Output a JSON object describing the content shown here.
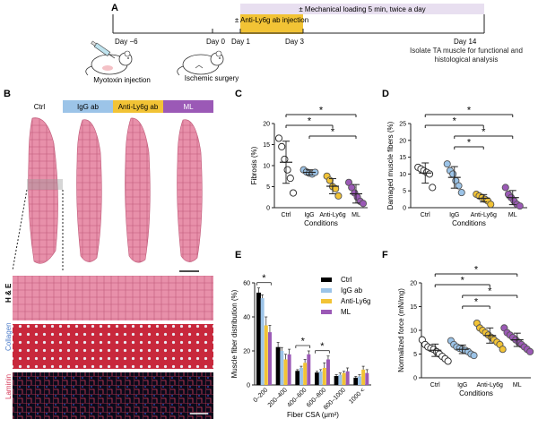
{
  "colors": {
    "ctrl": "#ffffff",
    "igg": "#9cc4e8",
    "antily6g": "#f2c335",
    "ml": "#9b59b6",
    "ctrl_bar": "#000000",
    "timeline_band": "#e8dff0",
    "injection_band": "#f2c335",
    "he_stain": "#d9708f",
    "collagen_stain": "#c8283c",
    "laminin_bg": "#0a0a1a",
    "laminin_line": "#d63a5a"
  },
  "panelA": {
    "letter": "A",
    "mech_loading": "± Mechanical loading 5 min, twice a day",
    "injection": "± Anti-Ly6g ab injection",
    "days": [
      "Day −6",
      "Day 0",
      "Day 1",
      "Day 3",
      "Day 14"
    ],
    "myotoxin": "Myotoxin injection",
    "ischemic": "Ischemic surgery",
    "isolate": "Isolate TA muscle for functional and histological analysis"
  },
  "panelB": {
    "letter": "B",
    "groups": [
      "Ctrl",
      "IgG ab",
      "Anti-Ly6g ab",
      "ML"
    ],
    "stains": [
      "H & E",
      "Collagen",
      "Laminin"
    ]
  },
  "chart_data": [
    {
      "panel": "C",
      "type": "scatter",
      "ylabel": "Fibrosis (%)",
      "xlabel": "Conditions",
      "categories": [
        "Ctrl",
        "IgG",
        "Anti-Ly6g",
        "ML"
      ],
      "ylim": [
        0,
        20
      ],
      "yticks": [
        0,
        5,
        10,
        15,
        20
      ],
      "points": [
        [
          16.5,
          14.5,
          11.5,
          9.0,
          7.0,
          3.5
        ],
        [
          9.0,
          8.5,
          8.2,
          8.0,
          8.4
        ],
        [
          7.5,
          6.5,
          5.0,
          4.5,
          2.8
        ],
        [
          6.0,
          4.8,
          3.5,
          2.5,
          1.5,
          1.0
        ]
      ],
      "mean": [
        10.8,
        8.4,
        5.1,
        3.3
      ],
      "err": [
        5.0,
        0.6,
        1.8,
        2.2
      ],
      "significance": [
        [
          "Ctrl",
          "ML"
        ],
        [
          "Ctrl",
          "Anti-Ly6g"
        ],
        [
          "IgG",
          "ML"
        ]
      ],
      "sig_label": "*"
    },
    {
      "panel": "D",
      "type": "scatter",
      "ylabel": "Damaged muscle fibers (%)",
      "xlabel": "Conditions",
      "categories": [
        "Ctrl",
        "IgG",
        "Anti-Ly6g",
        "ML"
      ],
      "ylim": [
        0,
        25
      ],
      "yticks": [
        0,
        5,
        10,
        15,
        20,
        25
      ],
      "points": [
        [
          12.0,
          11.5,
          11.0,
          10.5,
          10.0,
          6.0
        ],
        [
          13.0,
          11.0,
          10.0,
          8.0,
          6.5,
          4.5
        ],
        [
          4.0,
          3.5,
          3.0,
          2.5,
          2.0,
          1.0
        ],
        [
          6.0,
          4.0,
          3.0,
          2.0,
          1.0,
          0.5
        ]
      ],
      "mean": [
        10.3,
        9.0,
        2.8,
        3.0
      ],
      "err": [
        3.0,
        3.2,
        1.1,
        2.1
      ],
      "significance": [
        [
          "Ctrl",
          "ML"
        ],
        [
          "Ctrl",
          "Anti-Ly6g"
        ],
        [
          "IgG",
          "ML"
        ],
        [
          "IgG",
          "Anti-Ly6g"
        ]
      ],
      "sig_label": "*"
    },
    {
      "panel": "E",
      "type": "bar",
      "ylabel": "Muscle fiber distribution (%)",
      "xlabel": "Fiber CSA (μm²)",
      "categories": [
        "0–200",
        "200–400",
        "400–600",
        "600–800",
        "800–1000",
        "1000 <"
      ],
      "ylim": [
        0,
        60
      ],
      "yticks": [
        0,
        20,
        40,
        60
      ],
      "series": [
        {
          "name": "Ctrl",
          "values": [
            54,
            22,
            8,
            7,
            5,
            4
          ],
          "err": [
            3,
            3,
            1,
            1,
            1,
            1
          ]
        },
        {
          "name": "IgG ab",
          "values": [
            51,
            20,
            10,
            8,
            6,
            5
          ],
          "err": [
            2,
            2,
            1,
            1,
            1,
            1
          ]
        },
        {
          "name": "Anti-Ly6g",
          "values": [
            35,
            15,
            13,
            10,
            7,
            9
          ],
          "err": [
            5,
            3,
            2,
            3,
            1,
            2
          ]
        },
        {
          "name": "ML",
          "values": [
            31,
            18,
            18,
            15,
            8,
            7
          ],
          "err": [
            4,
            3,
            2,
            2,
            2,
            2
          ]
        }
      ],
      "significance": [
        "0–200",
        "400–600",
        "600–800"
      ],
      "sig_label": "*"
    },
    {
      "panel": "F",
      "type": "scatter",
      "ylabel": "Normalized force (mN/mg)",
      "xlabel": "Conditions",
      "categories": [
        "Ctrl",
        "IgG",
        "Anti-Ly6g",
        "ML"
      ],
      "ylim": [
        0,
        20
      ],
      "yticks": [
        0,
        5,
        10,
        15,
        20
      ],
      "points": [
        [
          8.0,
          7.0,
          6.5,
          6.2,
          6.0,
          5.5,
          5.0,
          4.5,
          4.0,
          3.5
        ],
        [
          7.8,
          7.0,
          6.5,
          6.2,
          6.0,
          5.8,
          5.5,
          5.0,
          4.7
        ],
        [
          11.5,
          10.5,
          10.0,
          9.5,
          9.0,
          8.5,
          8.0,
          7.5,
          7.0,
          6.0
        ],
        [
          10.5,
          9.5,
          9.0,
          8.5,
          8.0,
          7.5,
          7.0,
          6.5,
          6.0,
          5.5
        ]
      ],
      "mean": [
        5.8,
        6.0,
        8.9,
        8.0
      ],
      "err": [
        1.3,
        0.9,
        1.6,
        1.4
      ],
      "significance": [
        [
          "Ctrl",
          "ML"
        ],
        [
          "Ctrl",
          "Anti-Ly6g"
        ],
        [
          "IgG",
          "ML"
        ],
        [
          "IgG",
          "Anti-Ly6g"
        ]
      ],
      "sig_label": "*"
    }
  ]
}
